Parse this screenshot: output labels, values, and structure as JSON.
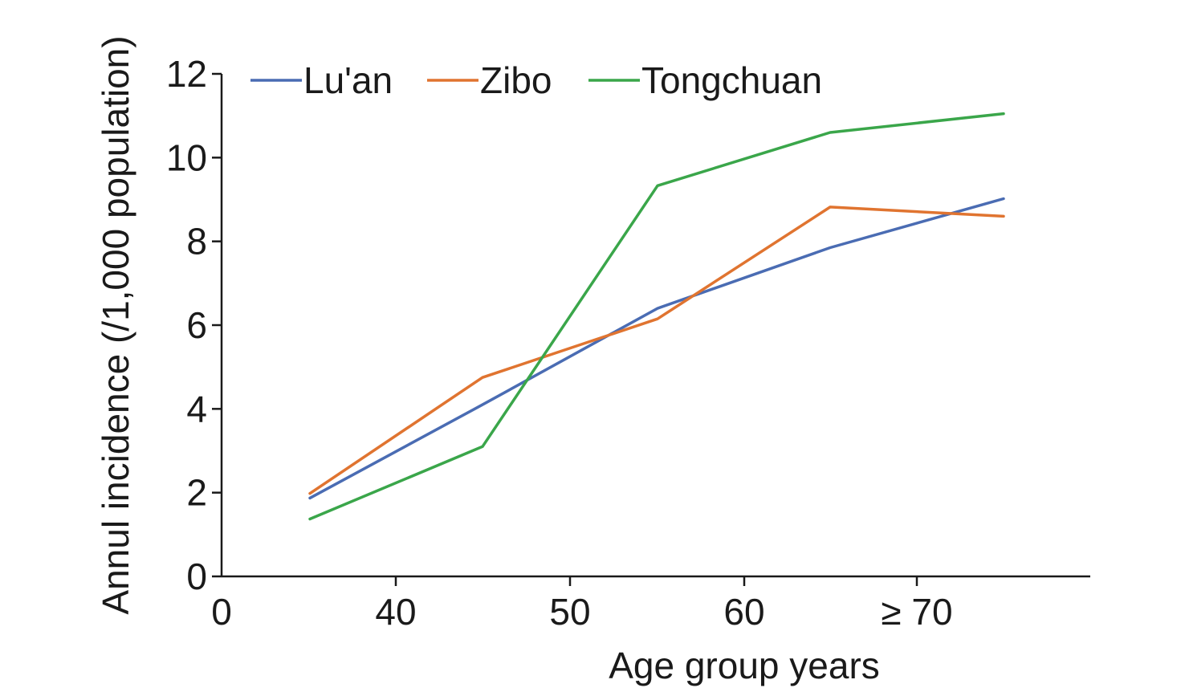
{
  "chart_data": {
    "type": "line",
    "title": "",
    "xlabel": "Age group years",
    "ylabel": "Annul incidence (/1,000 population)",
    "x_tick_labels": [
      "0",
      "40",
      "50",
      "60",
      "≥ 70"
    ],
    "y_tick_labels": [
      "0",
      "2",
      "4",
      "6",
      "8",
      "10",
      "12"
    ],
    "ylim": [
      0,
      12
    ],
    "y_tick_values": [
      0,
      2,
      4,
      6,
      8,
      10,
      12
    ],
    "grid": false,
    "legend_position": "top",
    "x": [
      "35",
      "45",
      "55",
      "65",
      "75"
    ],
    "series": [
      {
        "name": "Lu'an",
        "color": "#4a6cb3",
        "values": [
          1.87,
          4.1,
          6.4,
          7.85,
          9.02
        ]
      },
      {
        "name": "Zibo",
        "color": "#e07430",
        "values": [
          1.98,
          4.75,
          6.15,
          8.82,
          8.6
        ]
      },
      {
        "name": "Tongchuan",
        "color": "#3aa64a",
        "values": [
          1.37,
          3.1,
          9.33,
          10.6,
          11.05
        ]
      }
    ]
  }
}
